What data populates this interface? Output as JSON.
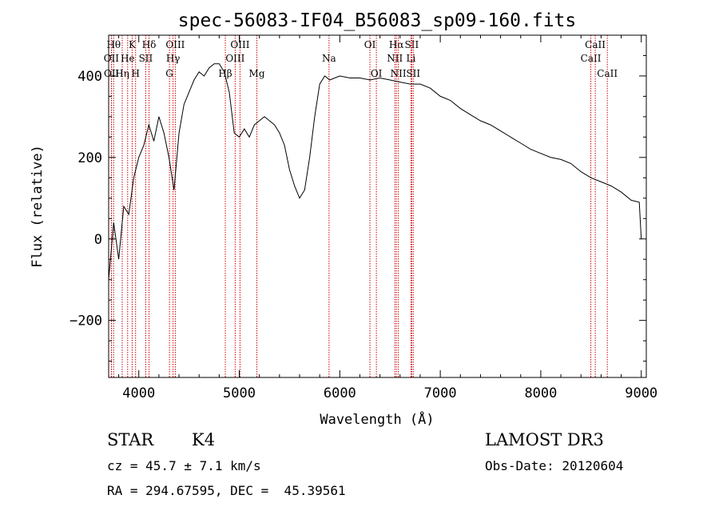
{
  "chart_data": {
    "type": "line",
    "title": "spec-56083-IF04_B56083_sp09-160.fits",
    "xlabel": "Wavelength (Å)",
    "ylabel": "Flux (relative)",
    "xlim": [
      3700,
      9050
    ],
    "ylim": [
      -340,
      500
    ],
    "xticks": [
      4000,
      5000,
      6000,
      7000,
      8000,
      9000
    ],
    "yticks": [
      -200,
      0,
      200,
      400
    ],
    "series": [
      {
        "name": "flux",
        "x": [
          3700,
          3750,
          3800,
          3850,
          3900,
          3950,
          4000,
          4050,
          4100,
          4150,
          4200,
          4250,
          4300,
          4350,
          4400,
          4450,
          4500,
          4550,
          4600,
          4650,
          4700,
          4750,
          4800,
          4850,
          4900,
          4950,
          5000,
          5050,
          5100,
          5150,
          5200,
          5250,
          5300,
          5350,
          5400,
          5450,
          5500,
          5550,
          5600,
          5650,
          5700,
          5750,
          5800,
          5850,
          5900,
          6000,
          6100,
          6200,
          6300,
          6400,
          6500,
          6600,
          6700,
          6800,
          6900,
          7000,
          7100,
          7200,
          7300,
          7400,
          7500,
          7600,
          7700,
          7800,
          7900,
          8000,
          8100,
          8200,
          8300,
          8400,
          8500,
          8600,
          8700,
          8800,
          8900,
          8980,
          9000
        ],
        "y": [
          -100,
          40,
          -50,
          80,
          60,
          150,
          200,
          230,
          280,
          240,
          300,
          260,
          200,
          120,
          260,
          330,
          360,
          390,
          410,
          400,
          420,
          430,
          430,
          410,
          360,
          260,
          250,
          270,
          250,
          280,
          290,
          300,
          290,
          280,
          260,
          230,
          170,
          130,
          100,
          120,
          200,
          300,
          380,
          400,
          390,
          400,
          395,
          395,
          390,
          395,
          390,
          385,
          380,
          380,
          370,
          350,
          340,
          320,
          305,
          290,
          280,
          265,
          250,
          235,
          220,
          210,
          200,
          195,
          185,
          165,
          150,
          140,
          130,
          115,
          95,
          90,
          0
        ]
      }
    ],
    "lines": [
      {
        "name": "Hθ",
        "x": 3750,
        "row": 0
      },
      {
        "name": "OII",
        "x": 3727,
        "row": 1
      },
      {
        "name": "OII",
        "x": 3729,
        "row": 2
      },
      {
        "name": "Hη",
        "x": 3835,
        "row": 2
      },
      {
        "name": "He",
        "x": 3889,
        "row": 1
      },
      {
        "name": "K",
        "x": 3934,
        "row": 0
      },
      {
        "name": "H",
        "x": 3968,
        "row": 2
      },
      {
        "name": "SII",
        "x": 4069,
        "row": 1
      },
      {
        "name": "Hδ",
        "x": 4102,
        "row": 0
      },
      {
        "name": "OIII",
        "x": 4363,
        "row": 0
      },
      {
        "name": "Hγ",
        "x": 4341,
        "row": 1
      },
      {
        "name": "G",
        "x": 4305,
        "row": 2
      },
      {
        "name": "Hβ",
        "x": 4861,
        "row": 2
      },
      {
        "name": "OIII",
        "x": 4959,
        "row": 1
      },
      {
        "name": "OIII",
        "x": 5007,
        "row": 0
      },
      {
        "name": "Mg",
        "x": 5175,
        "row": 2
      },
      {
        "name": "Na",
        "x": 5893,
        "row": 1
      },
      {
        "name": "OI",
        "x": 6300,
        "row": 0
      },
      {
        "name": "OI",
        "x": 6364,
        "row": 2
      },
      {
        "name": "NII",
        "x": 6548,
        "row": 1
      },
      {
        "name": "Hα",
        "x": 6563,
        "row": 0
      },
      {
        "name": "NII",
        "x": 6583,
        "row": 2
      },
      {
        "name": "SII",
        "x": 6716,
        "row": 0
      },
      {
        "name": "Li",
        "x": 6708,
        "row": 1
      },
      {
        "name": "SII",
        "x": 6731,
        "row": 2
      },
      {
        "name": "CaII",
        "x": 8498,
        "row": 1
      },
      {
        "name": "CaII",
        "x": 8542,
        "row": 0
      },
      {
        "name": "CaII",
        "x": 8662,
        "row": 2
      }
    ]
  },
  "info": {
    "object_class": "STAR",
    "subclass": "K4",
    "survey": "LAMOST DR3",
    "redshift": "cz = 45.7 ± 7.1 km/s",
    "obs_date": "Obs-Date: 20120604",
    "coords": "RA = 294.67595, DEC =  45.39561"
  },
  "colors": {
    "line": "#000000",
    "marker": "#cc0000"
  }
}
